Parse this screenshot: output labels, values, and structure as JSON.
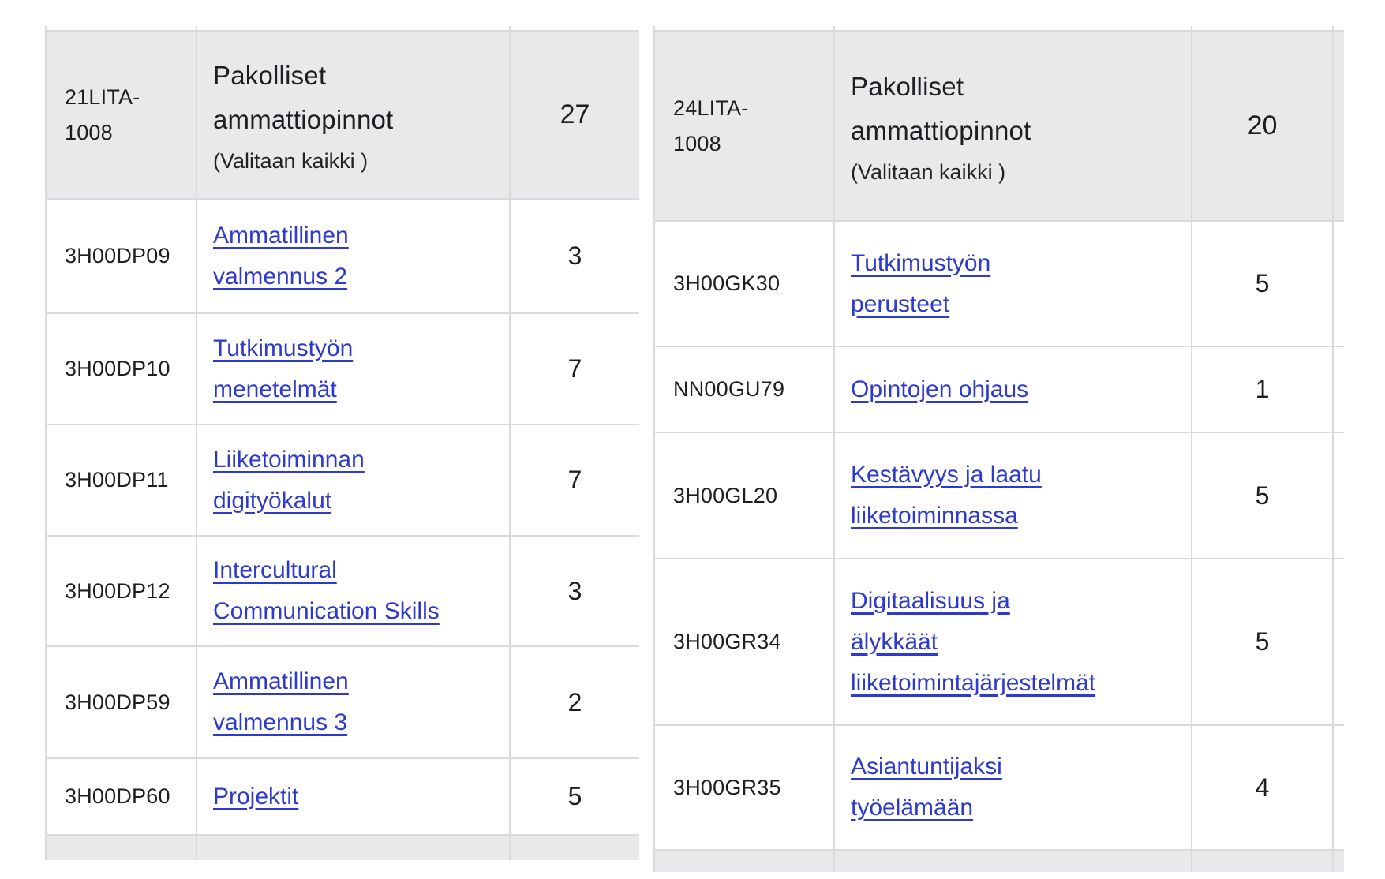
{
  "colors": {
    "link": "#2d3acd",
    "header-bg": "#e9e9eb",
    "border": "#d9d9de",
    "text": "#1e1e22",
    "page-bg": "#ffffff"
  },
  "tables": [
    {
      "side": "left",
      "header": {
        "code": "21LITA-1008",
        "code_lines": [
          "21LITA-",
          "1008"
        ],
        "title": "Pakolliset ammattiopinnot",
        "title_lines": [
          "Pakolliset",
          "ammattiopinnot"
        ],
        "subtitle": "(Valitaan kaikki )",
        "credits": "27"
      },
      "rows": [
        {
          "code": "3H00DP09",
          "title": "Ammatillinen valmennus 2",
          "title_lines": [
            "Ammatillinen",
            "valmennus 2"
          ],
          "credits": "3"
        },
        {
          "code": "3H00DP10",
          "title": "Tutkimustyön menetelmät",
          "title_lines": [
            "Tutkimustyön",
            "menetelmät"
          ],
          "credits": "7"
        },
        {
          "code": "3H00DP11",
          "title": "Liiketoiminnan digityökalut",
          "title_lines": [
            "Liiketoiminnan",
            "digityökalut"
          ],
          "credits": "7"
        },
        {
          "code": "3H00DP12",
          "title": "Intercultural Communication Skills",
          "title_lines": [
            "Intercultural",
            "Communication Skills"
          ],
          "credits": "3"
        },
        {
          "code": "3H00DP59",
          "title": "Ammatillinen valmennus 3",
          "title_lines": [
            "Ammatillinen",
            "valmennus 3"
          ],
          "credits": "2"
        },
        {
          "code": "3H00DP60",
          "title": "Projektit",
          "title_lines": [
            "Projektit"
          ],
          "credits": "5"
        }
      ]
    },
    {
      "side": "right",
      "header": {
        "code": "24LITA-1008",
        "code_lines": [
          "24LITA-",
          "1008"
        ],
        "title": "Pakolliset ammattiopinnot",
        "title_lines": [
          "Pakolliset",
          "ammattiopinnot"
        ],
        "subtitle": "(Valitaan kaikki )",
        "credits": "20"
      },
      "rows": [
        {
          "code": "3H00GK30",
          "title": "Tutkimustyön perusteet",
          "title_lines": [
            "Tutkimustyön",
            "perusteet"
          ],
          "credits": "5"
        },
        {
          "code": "NN00GU79",
          "title": "Opintojen ohjaus",
          "title_lines": [
            "Opintojen ohjaus"
          ],
          "credits": "1"
        },
        {
          "code": "3H00GL20",
          "title": "Kestävyys ja laatu liiketoiminnassa",
          "title_lines": [
            "Kestävyys ja laatu",
            "liiketoiminnassa"
          ],
          "credits": "5"
        },
        {
          "code": "3H00GR34",
          "title": "Digitaalisuus ja älykkäät liiketoimintajärjestelmät",
          "title_lines": [
            "Digitaalisuus ja",
            "älykkäät",
            "liiketoimintajärjestelmät"
          ],
          "credits": "5"
        },
        {
          "code": "3H00GR35",
          "title": "Asiantuntijaksi työelämään",
          "title_lines": [
            "Asiantuntijaksi",
            "työelämään"
          ],
          "credits": "4"
        }
      ]
    }
  ]
}
